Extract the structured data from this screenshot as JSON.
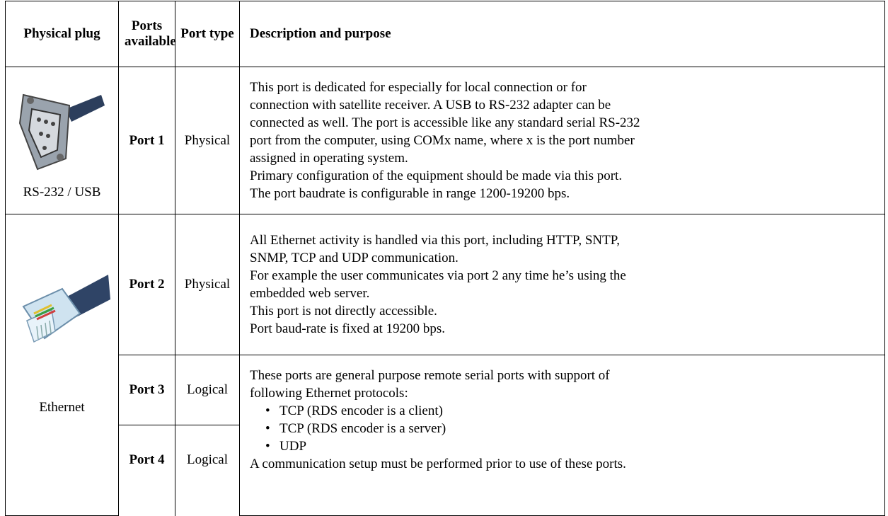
{
  "table": {
    "header": [
      "Physical plug",
      "Ports available",
      "Port type",
      "Description and purpose"
    ],
    "rows": [
      {
        "plug": "RS-232 / USB",
        "port": "Port 1",
        "type": "Physical",
        "description": [
          "This port is dedicated for especially for local connection or for",
          "connection with satellite receiver. A USB to RS-232 adapter can be",
          "connected as well. The port is accessible like any standard serial RS-232",
          "port from the computer, using COMx name, where x is the port number",
          "assigned in operating system.",
          "Primary configuration of the equipment should be made via this port.",
          "The port baudrate is configurable in range 1200-19200 bps."
        ]
      },
      {
        "plug": "Ethernet",
        "port": "Port 2",
        "type": "Physical",
        "description": [
          "All Ethernet activity is handled via this port, including HTTP, SNTP,",
          "SNMP, TCP and UDP communication.",
          "For example the user communicates via port 2 any time he’s using the",
          "embedded web server.",
          "This port is not directly accessible.",
          "Port baud-rate is fixed at 19200 bps."
        ]
      },
      {
        "port": "Port 3",
        "type": "Logical",
        "description": {
          "intro": [
            "These ports are general purpose remote serial ports with support of",
            "following Ethernet protocols:"
          ],
          "bullets": [
            "TCP (RDS encoder is a client)",
            "TCP (RDS encoder is a server)",
            "UDP"
          ],
          "outro": [
            "A communication setup must be performed prior to use of these ports."
          ]
        }
      },
      {
        "port": "Port 4",
        "type": "Logical"
      }
    ]
  }
}
